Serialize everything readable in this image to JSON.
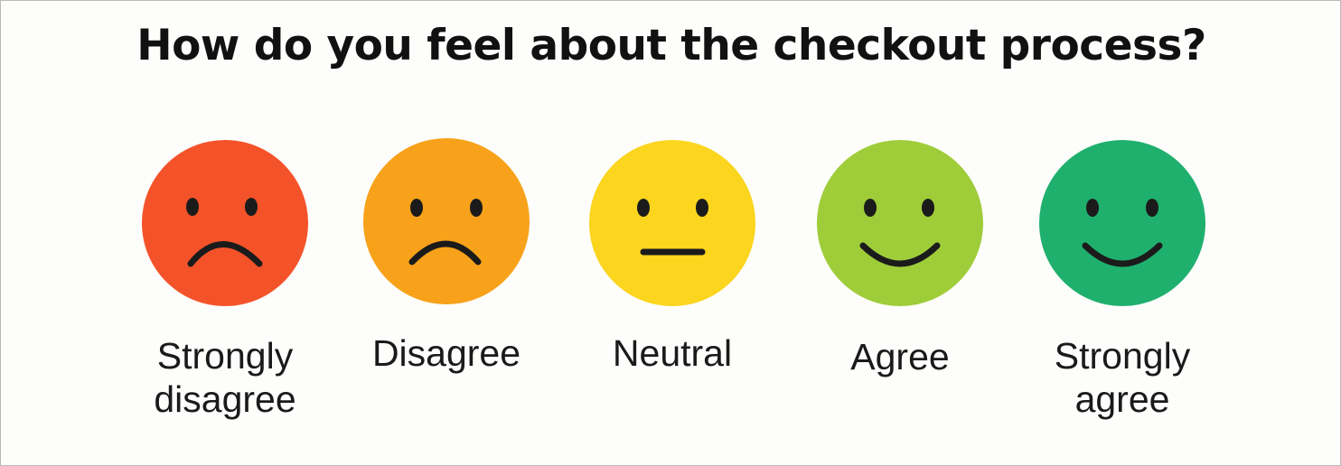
{
  "survey": {
    "question": "How do you feel about the checkout process?",
    "options": [
      {
        "label_line1": "Strongly",
        "label_line2": "disagree",
        "color": "#f4532a",
        "icon": "very-sad-face-icon"
      },
      {
        "label_line1": "Disagree",
        "label_line2": "",
        "color": "#f7a21a",
        "icon": "sad-face-icon"
      },
      {
        "label_line1": "Neutral",
        "label_line2": "",
        "color": "#fbd51e",
        "icon": "neutral-face-icon"
      },
      {
        "label_line1": "Agree",
        "label_line2": "",
        "color": "#9fcd3a",
        "icon": "happy-face-icon"
      },
      {
        "label_line1": "Strongly",
        "label_line2": "agree",
        "color": "#1fb06e",
        "icon": "very-happy-face-icon"
      }
    ]
  }
}
